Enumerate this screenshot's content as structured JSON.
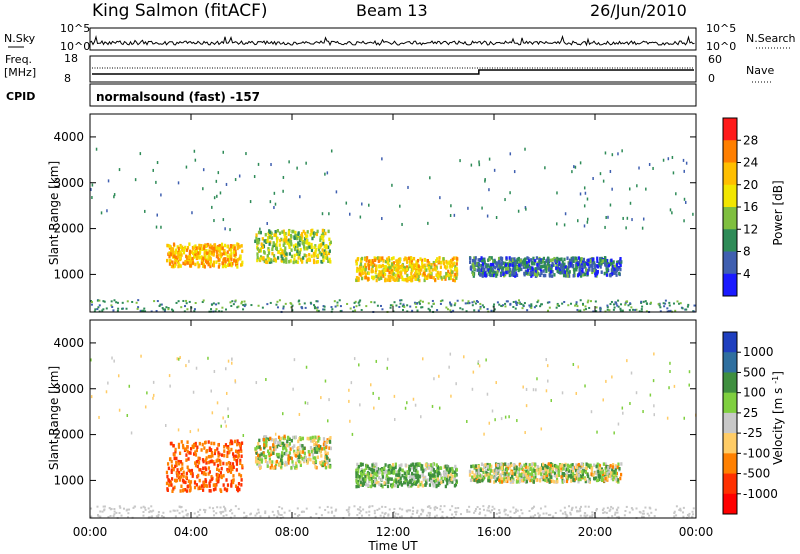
{
  "header": {
    "station": "King Salmon (fitACF)",
    "beam": "Beam 13",
    "date": "26/Jun/2010"
  },
  "top_panel": {
    "nsky_label": "N.Sky",
    "nsearch_label": "N.Search",
    "left_ticks": [
      "10^5",
      "10^0"
    ],
    "right_ticks": [
      "10^5",
      "10^0"
    ],
    "freq_label": "Freq.",
    "freq_unit": "[MHz]",
    "freq_ticks": [
      "18",
      "8"
    ],
    "nave_label": "Nave",
    "nave_ticks": [
      "60",
      "0"
    ],
    "cpid_label": "CPID",
    "cpid_value": "normalsound (fast) -157"
  },
  "chart_data": [
    {
      "type": "heatmap",
      "panel": "power",
      "ylabel": "Slant Range [km]",
      "xlabel": "",
      "x_ticks": [
        "00:00",
        "04:00",
        "08:00",
        "12:00",
        "16:00",
        "20:00",
        "00:00"
      ],
      "xlim_hours": [
        0,
        24
      ],
      "y_ticks": [
        1000,
        2000,
        3000,
        4000
      ],
      "ylim": [
        180,
        4500
      ],
      "colorbar_label": "Power [dB]",
      "colorbar_ticks": [
        "28",
        "24",
        "20",
        "16",
        "12",
        "8",
        "4"
      ],
      "colorbar_colors": [
        "#ff1a1a",
        "#ff7f00",
        "#ffbf00",
        "#f2e600",
        "#7fbf3f",
        "#2e8b57",
        "#3f5fb0",
        "#1a1aff"
      ],
      "echo_regions": [
        {
          "start": "03:00",
          "end": "06:00",
          "range_km": [
            1200,
            1700
          ],
          "level_db": 20
        },
        {
          "start": "06:30",
          "end": "09:30",
          "range_km": [
            1300,
            2000
          ],
          "level_db": 14
        },
        {
          "start": "10:30",
          "end": "14:30",
          "range_km": [
            900,
            1400
          ],
          "level_db": 18
        },
        {
          "start": "15:00",
          "end": "21:00",
          "range_km": [
            1000,
            1400
          ],
          "level_db": 6
        }
      ]
    },
    {
      "type": "heatmap",
      "panel": "velocity",
      "ylabel": "Slant Range [km]",
      "xlabel": "Time UT",
      "x_ticks": [
        "00:00",
        "04:00",
        "08:00",
        "12:00",
        "16:00",
        "20:00",
        "00:00"
      ],
      "xlim_hours": [
        0,
        24
      ],
      "y_ticks": [
        1000,
        2000,
        3000,
        4000
      ],
      "ylim": [
        180,
        4500
      ],
      "colorbar_label": "Velocity [m s",
      "colorbar_unit_exp": "-1",
      "colorbar_unit_close": "]",
      "colorbar_ticks": [
        "1000",
        "500",
        "100",
        "25",
        "-25",
        "-100",
        "-500",
        "-1000"
      ],
      "colorbar_colors": [
        "#1f3fbf",
        "#2f6f9f",
        "#3f8f3f",
        "#7fcf3f",
        "#c8c8c8",
        "#ffcc66",
        "#ff8000",
        "#ff3000",
        "#ff0000"
      ],
      "echo_regions": [
        {
          "start": "03:00",
          "end": "06:00",
          "range_km": [
            800,
            1900
          ],
          "velocity": -500
        },
        {
          "start": "06:30",
          "end": "09:30",
          "range_km": [
            1300,
            2000
          ],
          "velocity": 0
        },
        {
          "start": "10:30",
          "end": "14:30",
          "range_km": [
            900,
            1400
          ],
          "velocity": 100
        },
        {
          "start": "15:00",
          "end": "21:00",
          "range_km": [
            1000,
            1400
          ],
          "velocity": 25
        }
      ]
    }
  ]
}
